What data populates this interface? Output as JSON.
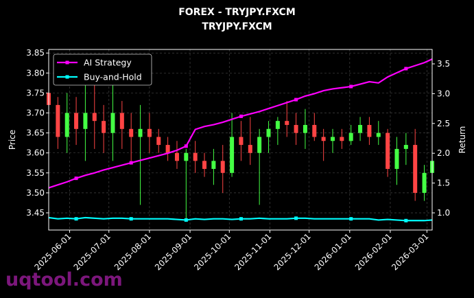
{
  "chart_data": {
    "type": "candlestick",
    "title": "FOREX - TRYJPY.FXCM",
    "subtitle": "TRYJPY.FXCM",
    "ylabel": "Price",
    "y2label": "Return",
    "ylim": [
      3.407,
      3.859
    ],
    "y2lim": [
      0.712,
      3.742
    ],
    "xlim": [
      "2025-05-16",
      "2026-03-05"
    ],
    "yticks": [
      "3.45",
      "3.50",
      "3.55",
      "3.60",
      "3.65",
      "3.70",
      "3.75",
      "3.80",
      "3.85"
    ],
    "y2ticks": [
      "1.0",
      "1.5",
      "2.0",
      "2.5",
      "3.0",
      "3.5"
    ],
    "xticks": [
      "2025-06-01",
      "2025-07-01",
      "2025-08-01",
      "2025-09-01",
      "2025-10-01",
      "2025-11-01",
      "2025-12-01",
      "2026-01-01",
      "2026-02-01",
      "2026-03-01"
    ],
    "grid": true,
    "legend_position": "top-left",
    "colors": {
      "up": "#44ff44",
      "down": "#ff4444",
      "strategy": "#ff00ff",
      "buy_hold": "#00ffff"
    },
    "dates": [
      "2025-05-16",
      "2025-05-23",
      "2025-05-30",
      "2025-06-06",
      "2025-06-13",
      "2025-06-20",
      "2025-06-27",
      "2025-07-04",
      "2025-07-11",
      "2025-07-18",
      "2025-07-25",
      "2025-08-01",
      "2025-08-08",
      "2025-08-15",
      "2025-08-22",
      "2025-08-29",
      "2025-09-05",
      "2025-09-12",
      "2025-09-19",
      "2025-09-26",
      "2025-10-03",
      "2025-10-10",
      "2025-10-17",
      "2025-10-24",
      "2025-10-31",
      "2025-11-07",
      "2025-11-14",
      "2025-11-21",
      "2025-11-28",
      "2025-12-05",
      "2025-12-12",
      "2025-12-19",
      "2025-12-26",
      "2026-01-02",
      "2026-01-09",
      "2026-01-16",
      "2026-01-23",
      "2026-01-30",
      "2026-02-06",
      "2026-02-13",
      "2026-02-20",
      "2026-02-27",
      "2026-03-05"
    ],
    "ohlc": [
      [
        3.75,
        3.78,
        3.7,
        3.72
      ],
      [
        3.72,
        3.74,
        3.61,
        3.64
      ],
      [
        3.64,
        3.75,
        3.6,
        3.7
      ],
      [
        3.7,
        3.74,
        3.62,
        3.66
      ],
      [
        3.66,
        3.84,
        3.58,
        3.7
      ],
      [
        3.7,
        3.81,
        3.61,
        3.68
      ],
      [
        3.68,
        3.72,
        3.6,
        3.65
      ],
      [
        3.65,
        3.83,
        3.58,
        3.7
      ],
      [
        3.7,
        3.73,
        3.61,
        3.66
      ],
      [
        3.66,
        3.7,
        3.58,
        3.64
      ],
      [
        3.64,
        3.72,
        3.47,
        3.66
      ],
      [
        3.66,
        3.7,
        3.6,
        3.64
      ],
      [
        3.64,
        3.66,
        3.6,
        3.62
      ],
      [
        3.62,
        3.64,
        3.58,
        3.6
      ],
      [
        3.6,
        3.63,
        3.56,
        3.58
      ],
      [
        3.58,
        3.61,
        3.43,
        3.6
      ],
      [
        3.6,
        3.63,
        3.55,
        3.58
      ],
      [
        3.58,
        3.6,
        3.54,
        3.56
      ],
      [
        3.56,
        3.61,
        3.52,
        3.58
      ],
      [
        3.58,
        3.62,
        3.5,
        3.55
      ],
      [
        3.55,
        3.7,
        3.54,
        3.64
      ],
      [
        3.64,
        3.68,
        3.58,
        3.62
      ],
      [
        3.62,
        3.69,
        3.57,
        3.6
      ],
      [
        3.6,
        3.66,
        3.47,
        3.64
      ],
      [
        3.64,
        3.68,
        3.6,
        3.66
      ],
      [
        3.66,
        3.69,
        3.62,
        3.68
      ],
      [
        3.68,
        3.73,
        3.64,
        3.67
      ],
      [
        3.67,
        3.7,
        3.62,
        3.65
      ],
      [
        3.65,
        3.71,
        3.61,
        3.67
      ],
      [
        3.67,
        3.7,
        3.63,
        3.64
      ],
      [
        3.64,
        3.66,
        3.58,
        3.63
      ],
      [
        3.63,
        3.66,
        3.6,
        3.64
      ],
      [
        3.64,
        3.66,
        3.61,
        3.63
      ],
      [
        3.63,
        3.67,
        3.62,
        3.65
      ],
      [
        3.65,
        3.69,
        3.63,
        3.67
      ],
      [
        3.67,
        3.69,
        3.62,
        3.64
      ],
      [
        3.64,
        3.68,
        3.62,
        3.65
      ],
      [
        3.65,
        3.66,
        3.54,
        3.56
      ],
      [
        3.56,
        3.64,
        3.52,
        3.61
      ],
      [
        3.61,
        3.65,
        3.57,
        3.62
      ],
      [
        3.62,
        3.66,
        3.48,
        3.5
      ],
      [
        3.5,
        3.57,
        3.48,
        3.55
      ],
      [
        3.55,
        3.6,
        3.53,
        3.58
      ]
    ],
    "series": [
      {
        "name": "AI Strategy",
        "values": [
          1.42,
          1.47,
          1.52,
          1.58,
          1.63,
          1.67,
          1.72,
          1.76,
          1.8,
          1.84,
          1.88,
          1.92,
          1.96,
          2.0,
          2.05,
          2.12,
          2.4,
          2.45,
          2.48,
          2.52,
          2.57,
          2.62,
          2.66,
          2.7,
          2.75,
          2.8,
          2.85,
          2.9,
          2.96,
          3.0,
          3.05,
          3.08,
          3.1,
          3.12,
          3.16,
          3.2,
          3.18,
          3.28,
          3.35,
          3.42,
          3.47,
          3.52,
          3.58
        ]
      },
      {
        "name": "Buy-and-Hold",
        "values": [
          0.92,
          0.9,
          0.91,
          0.9,
          0.92,
          0.91,
          0.9,
          0.91,
          0.91,
          0.9,
          0.9,
          0.9,
          0.9,
          0.9,
          0.89,
          0.88,
          0.9,
          0.89,
          0.9,
          0.9,
          0.89,
          0.9,
          0.9,
          0.91,
          0.9,
          0.9,
          0.9,
          0.91,
          0.91,
          0.9,
          0.9,
          0.9,
          0.9,
          0.9,
          0.9,
          0.9,
          0.88,
          0.89,
          0.88,
          0.87,
          0.87,
          0.87,
          0.88
        ]
      }
    ]
  },
  "watermark": "uqtool.com"
}
